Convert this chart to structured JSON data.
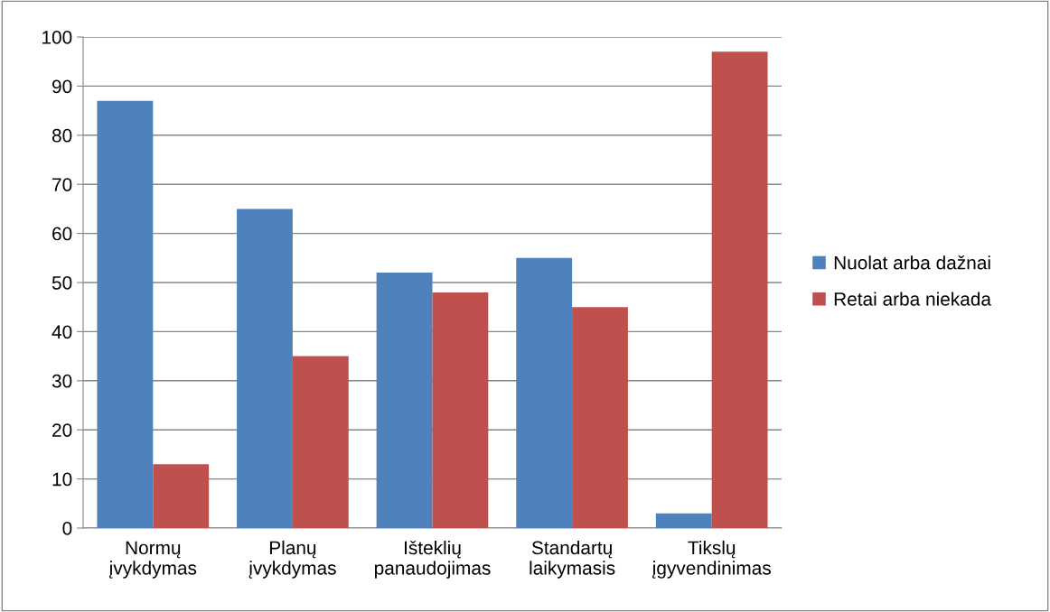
{
  "chart_data": {
    "type": "bar",
    "categories": [
      "Normų\nįvykdymas",
      "Planų\nįvykdymas",
      "Išteklių\npanaudojimas",
      "Standartų\nlaikymasis",
      "Tikslų\nįgyvendinimas"
    ],
    "series": [
      {
        "name": "Nuolat arba dažnai",
        "color": "#4f81bd",
        "values": [
          87,
          65,
          52,
          55,
          3
        ]
      },
      {
        "name": "Retai arba niekada",
        "color": "#c0504d",
        "values": [
          13,
          35,
          48,
          45,
          97
        ]
      }
    ],
    "ylim": [
      0,
      100
    ],
    "yticks": [
      0,
      10,
      20,
      30,
      40,
      50,
      60,
      70,
      80,
      90,
      100
    ],
    "grid": "y",
    "legend": "right"
  }
}
